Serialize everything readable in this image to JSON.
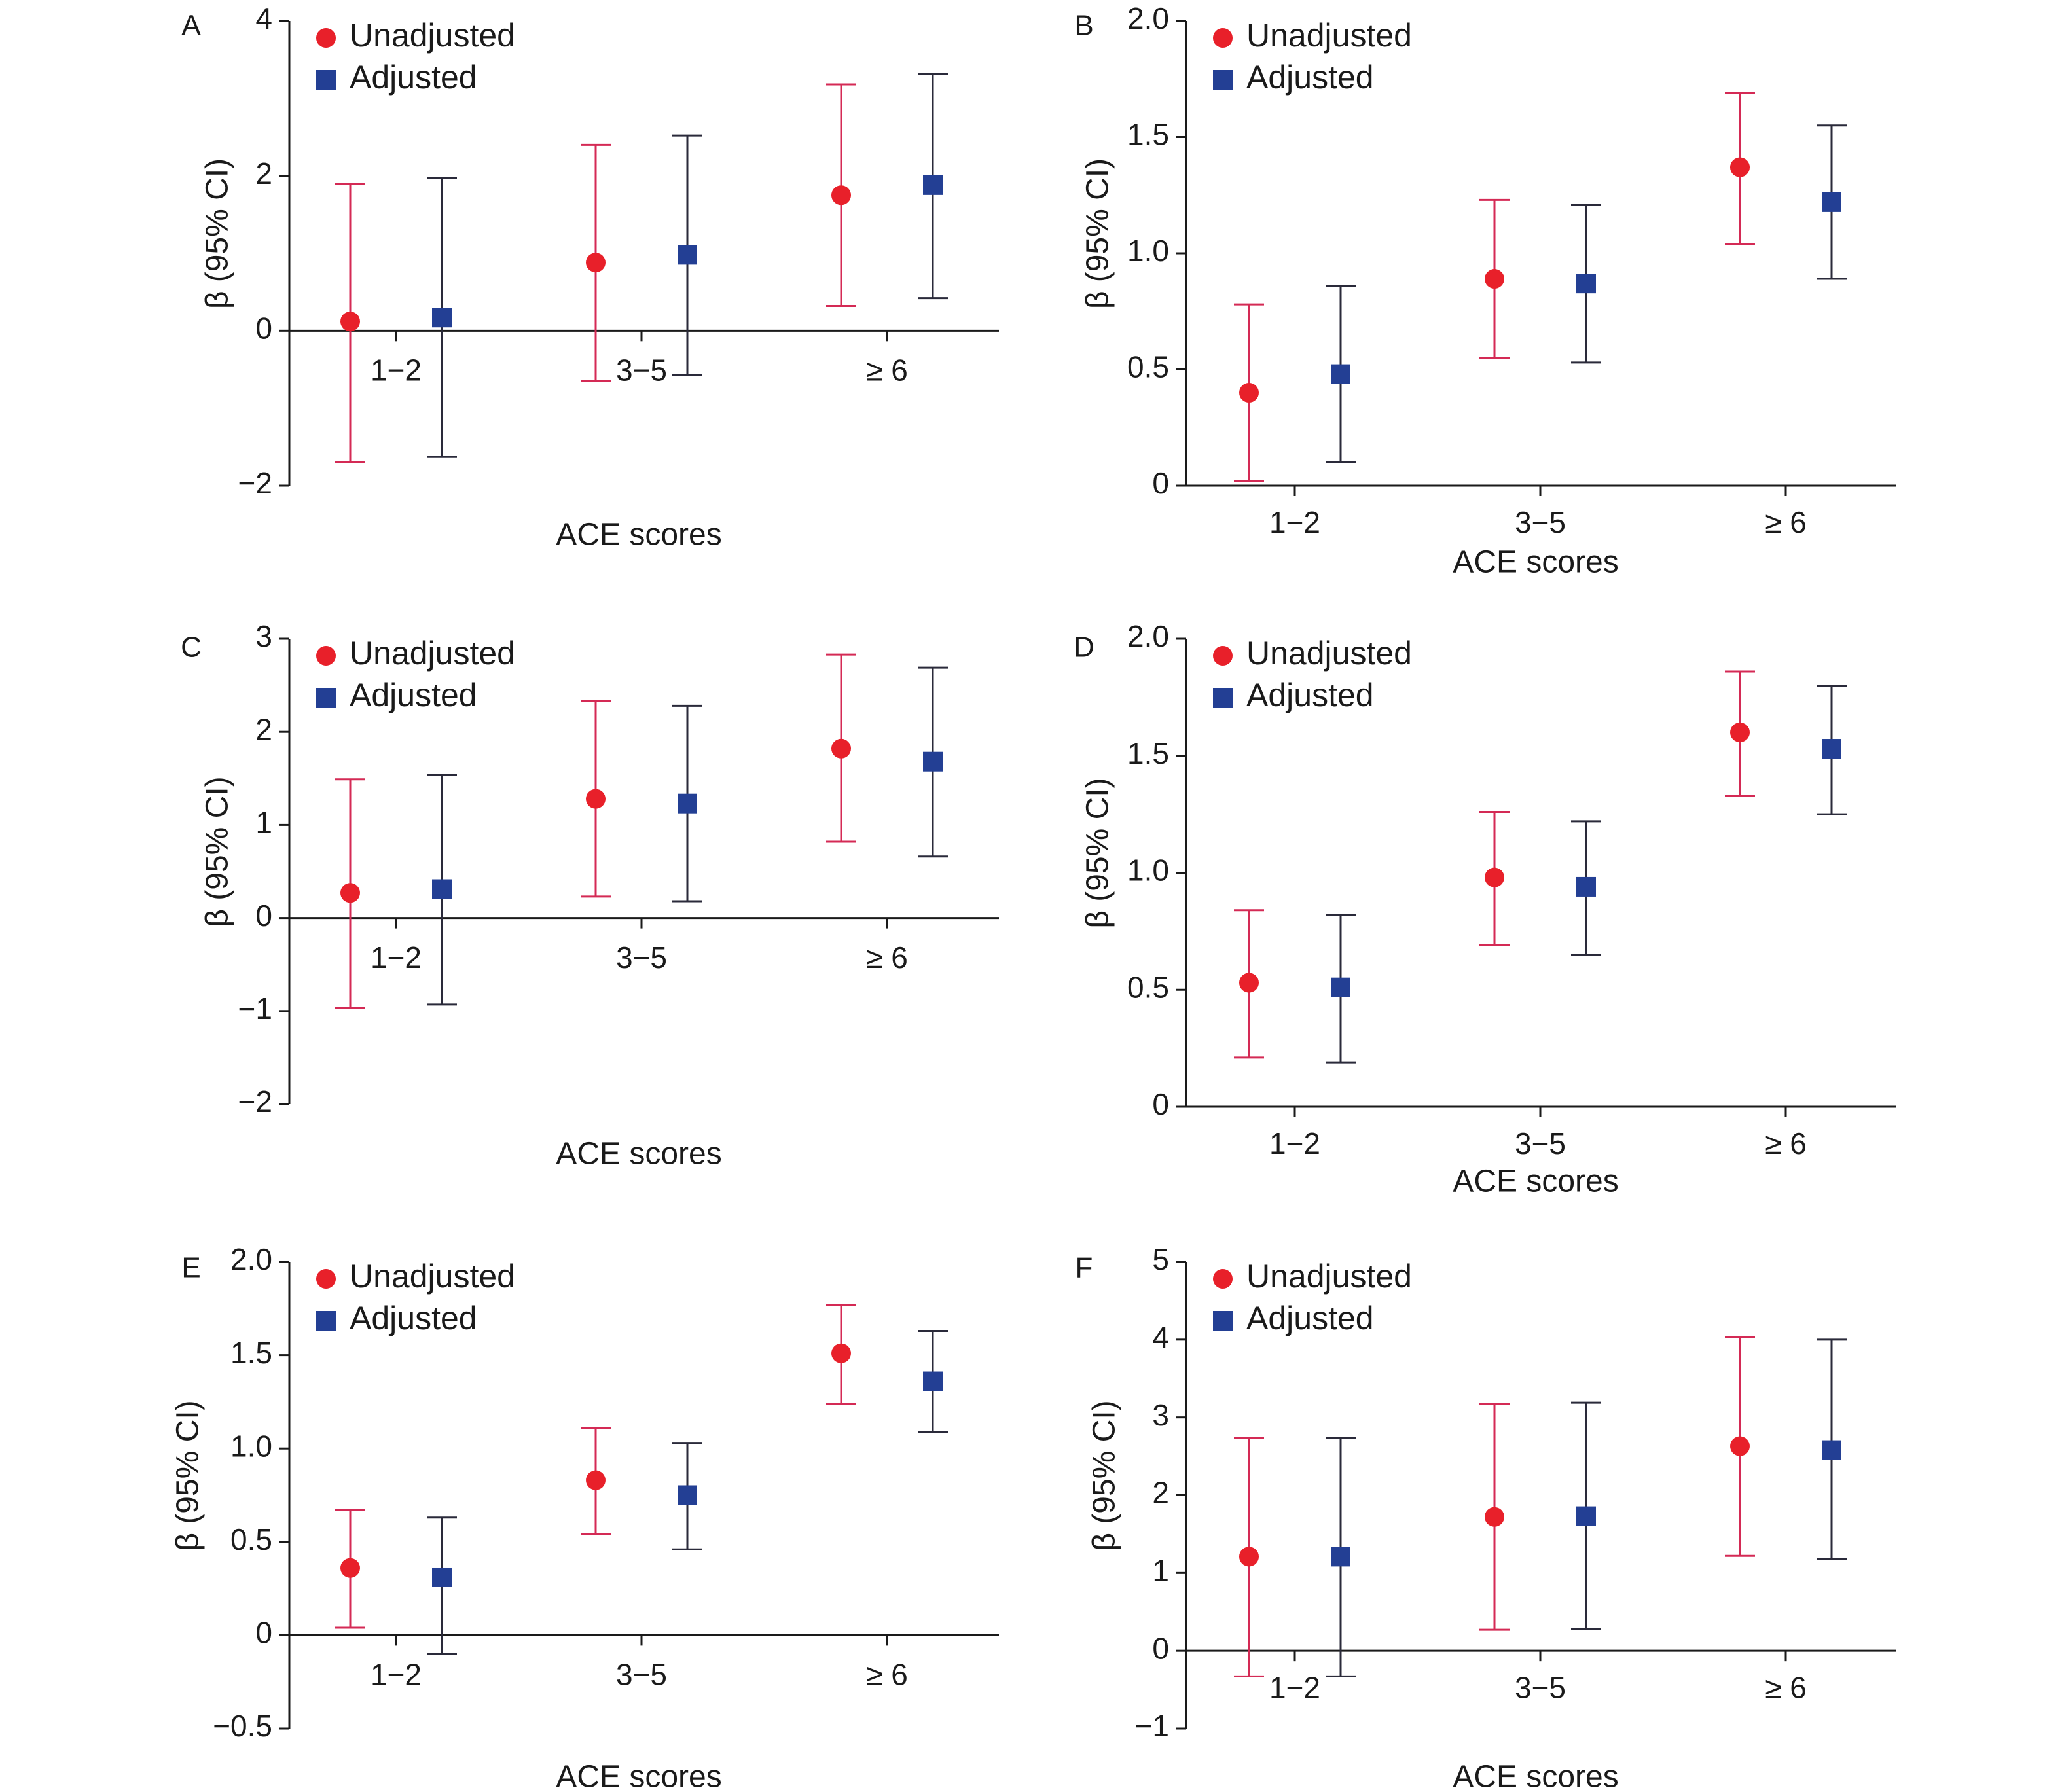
{
  "figure": {
    "category_axis_label": "ACE  scores",
    "value_axis_label": "β (95% CI)",
    "legend": [
      "Unadjusted",
      "Adjusted"
    ]
  },
  "colors": {
    "unadjusted": "#e8202a",
    "unadjusted_bar": "#d42a55",
    "adjusted": "#233f94",
    "adjusted_bar": "#2a2a3a"
  },
  "chart_data": [
    {
      "type": "scatter",
      "panel": "A",
      "categories": [
        "1−2",
        "3−5",
        "≥ 6"
      ],
      "ylim": [
        -2,
        4
      ],
      "yticks": [
        -2,
        0,
        2,
        4
      ],
      "ytick_labels": [
        "−2",
        "0",
        "2",
        "4"
      ],
      "xlabel": "ACE  scores",
      "ylabel": "β (95% CI)",
      "series": [
        {
          "name": "Unadjusted",
          "values": [
            0.12,
            0.88,
            1.75
          ],
          "lower": [
            -1.7,
            -0.65,
            0.32
          ],
          "upper": [
            1.9,
            2.4,
            3.18
          ]
        },
        {
          "name": "Adjusted",
          "values": [
            0.17,
            0.98,
            1.88
          ],
          "lower": [
            -1.63,
            -0.57,
            0.42
          ],
          "upper": [
            1.97,
            2.52,
            3.32
          ]
        }
      ]
    },
    {
      "type": "scatter",
      "panel": "B",
      "categories": [
        "1−2",
        "3−5",
        "≥ 6"
      ],
      "ylim": [
        0,
        2.0
      ],
      "yticks": [
        0,
        0.5,
        1.0,
        1.5,
        2.0
      ],
      "ytick_labels": [
        "0",
        "0.5",
        "1.0",
        "1.5",
        "2.0"
      ],
      "xlabel": "ACE  scores",
      "ylabel": "β (95% CI)",
      "series": [
        {
          "name": "Unadjusted",
          "values": [
            0.4,
            0.89,
            1.37
          ],
          "lower": [
            0.02,
            0.55,
            1.04
          ],
          "upper": [
            0.78,
            1.23,
            1.69
          ]
        },
        {
          "name": "Adjusted",
          "values": [
            0.48,
            0.87,
            1.22
          ],
          "lower": [
            0.1,
            0.53,
            0.89
          ],
          "upper": [
            0.86,
            1.21,
            1.55
          ]
        }
      ]
    },
    {
      "type": "scatter",
      "panel": "C",
      "categories": [
        "1−2",
        "3−5",
        "≥ 6"
      ],
      "ylim": [
        -2,
        3
      ],
      "yticks": [
        -2,
        -1,
        0,
        1,
        2,
        3
      ],
      "ytick_labels": [
        "−2",
        "−1",
        "0",
        "1",
        "2",
        "3"
      ],
      "xlabel": "ACE  scores",
      "ylabel": "β (95% CI)",
      "series": [
        {
          "name": "Unadjusted",
          "values": [
            0.27,
            1.28,
            1.82
          ],
          "lower": [
            -0.97,
            0.23,
            0.82
          ],
          "upper": [
            1.49,
            2.33,
            2.83
          ]
        },
        {
          "name": "Adjusted",
          "values": [
            0.31,
            1.23,
            1.68
          ],
          "lower": [
            -0.93,
            0.18,
            0.66
          ],
          "upper": [
            1.54,
            2.28,
            2.69
          ]
        }
      ]
    },
    {
      "type": "scatter",
      "panel": "D",
      "categories": [
        "1−2",
        "3−5",
        "≥ 6"
      ],
      "ylim": [
        0,
        2.0
      ],
      "yticks": [
        0,
        0.5,
        1.0,
        1.5,
        2.0
      ],
      "ytick_labels": [
        "0",
        "0.5",
        "1.0",
        "1.5",
        "2.0"
      ],
      "xlabel": "ACE  scores",
      "ylabel": "β (95% CI)",
      "series": [
        {
          "name": "Unadjusted",
          "values": [
            0.53,
            0.98,
            1.6
          ],
          "lower": [
            0.21,
            0.69,
            1.33
          ],
          "upper": [
            0.84,
            1.26,
            1.86
          ]
        },
        {
          "name": "Adjusted",
          "values": [
            0.51,
            0.94,
            1.53
          ],
          "lower": [
            0.19,
            0.65,
            1.25
          ],
          "upper": [
            0.82,
            1.22,
            1.8
          ]
        }
      ]
    },
    {
      "type": "scatter",
      "panel": "E",
      "categories": [
        "1−2",
        "3−5",
        "≥ 6"
      ],
      "ylim": [
        -0.5,
        2.0
      ],
      "yticks": [
        -0.5,
        0,
        0.5,
        1.0,
        1.5,
        2.0
      ],
      "ytick_labels": [
        "−0.5",
        "0",
        "0.5",
        "1.0",
        "1.5",
        "2.0"
      ],
      "xlabel": "ACE  scores",
      "ylabel": "β (95% CI)",
      "series": [
        {
          "name": "Unadjusted",
          "values": [
            0.36,
            0.83,
            1.51
          ],
          "lower": [
            0.04,
            0.54,
            1.24
          ],
          "upper": [
            0.67,
            1.11,
            1.77
          ]
        },
        {
          "name": "Adjusted",
          "values": [
            0.31,
            0.75,
            1.36
          ],
          "lower": [
            -0.1,
            0.46,
            1.09
          ],
          "upper": [
            0.63,
            1.03,
            1.63
          ]
        }
      ]
    },
    {
      "type": "scatter",
      "panel": "F",
      "categories": [
        "1−2",
        "3−5",
        "≥ 6"
      ],
      "ylim": [
        -1,
        5
      ],
      "yticks": [
        -1,
        0,
        1,
        2,
        3,
        4,
        5
      ],
      "ytick_labels": [
        "−1",
        "0",
        "1",
        "2",
        "3",
        "4",
        "5"
      ],
      "xlabel": "ACE  scores",
      "ylabel": "β (95% CI)",
      "series": [
        {
          "name": "Unadjusted",
          "values": [
            1.21,
            1.72,
            2.63
          ],
          "lower": [
            -0.33,
            0.27,
            1.22
          ],
          "upper": [
            2.74,
            3.17,
            4.03
          ]
        },
        {
          "name": "Adjusted",
          "values": [
            1.21,
            1.73,
            2.58
          ],
          "lower": [
            -0.33,
            0.28,
            1.18
          ],
          "upper": [
            2.74,
            3.19,
            4.0
          ]
        }
      ]
    }
  ]
}
